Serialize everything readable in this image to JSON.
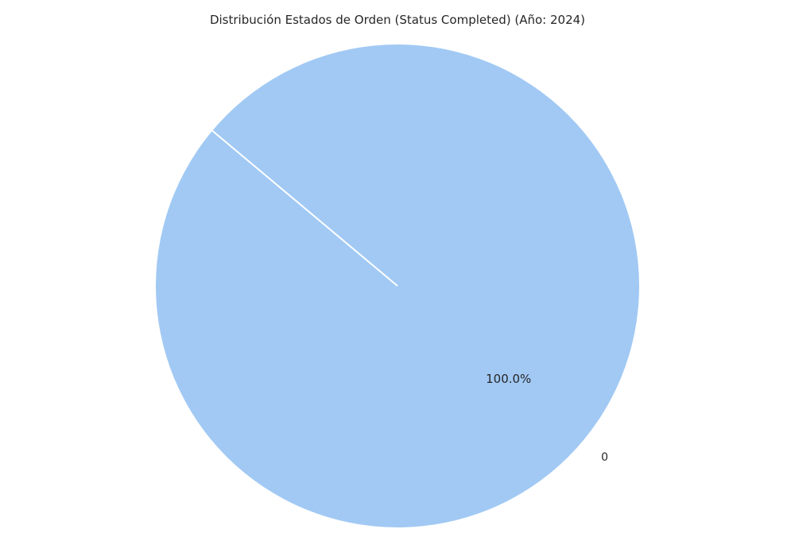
{
  "chart_data": {
    "type": "pie",
    "title": "Distribución Estados de Orden (Status Completed) (Año: 2024)",
    "categories": [
      "0"
    ],
    "values": [
      100.0
    ],
    "percent_labels": [
      "100.0%"
    ],
    "start_angle_deg": 140,
    "colors": [
      "#a1c9f4"
    ],
    "edge_color": "#ffffff",
    "legend": "none"
  }
}
